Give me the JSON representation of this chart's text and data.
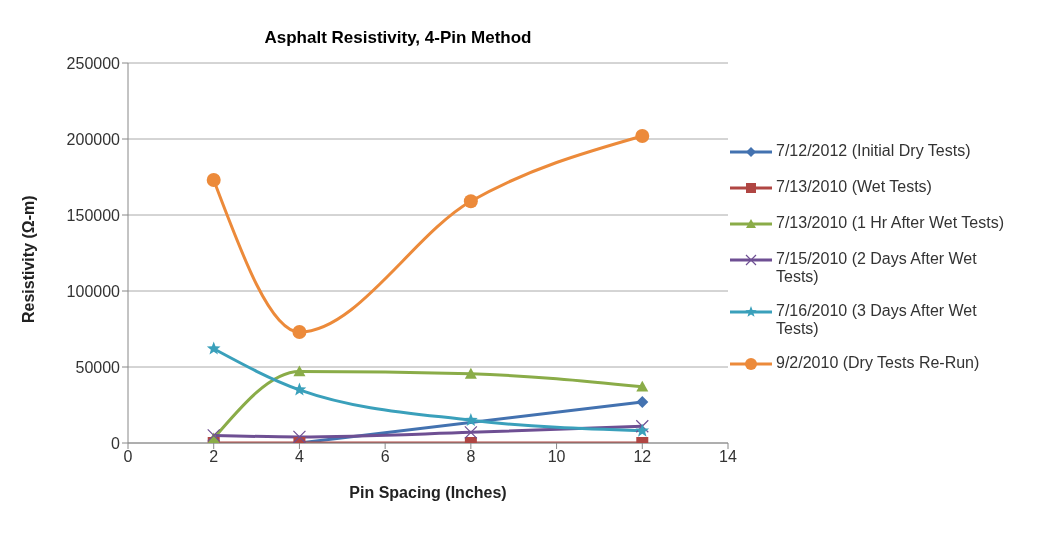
{
  "chart_data": {
    "type": "line",
    "title": "Asphalt Resistivity, 4-Pin Method",
    "xlabel": "Pin Spacing (Inches)",
    "ylabel": "Resistivity (Ω-m)",
    "x": [
      2,
      4,
      8,
      12
    ],
    "xlim": [
      0,
      14
    ],
    "xticks": [
      0,
      2,
      4,
      6,
      8,
      10,
      12,
      14
    ],
    "ylim": [
      0,
      250000
    ],
    "yticks": [
      0,
      50000,
      100000,
      150000,
      200000,
      250000
    ],
    "grid": "y",
    "legend": "right",
    "series": [
      {
        "name": "7/12/2012 (Initial Dry Tests)",
        "color": "#4372b0",
        "marker": "diamond",
        "values": [
          null,
          0,
          null,
          27000
        ]
      },
      {
        "name": "7/13/2010  (Wet Tests)",
        "color": "#b04643",
        "marker": "square",
        "values": [
          0,
          0,
          0,
          0
        ]
      },
      {
        "name": "7/13/2010 (1 Hr After Wet Tests)",
        "color": "#8aac48",
        "marker": "triangle",
        "values": [
          3000,
          47000,
          45500,
          37000
        ]
      },
      {
        "name": "7/15/2010 (2 Days After Wet Tests)",
        "color": "#6e4f93",
        "marker": "cross",
        "values": [
          5000,
          4000,
          7000,
          11000
        ]
      },
      {
        "name": "7/16/2010 (3 Days After Wet Tests)",
        "color": "#3aa0bb",
        "marker": "star",
        "values": [
          62000,
          35000,
          15000,
          8000
        ]
      },
      {
        "name": "9/2/2010 (Dry Tests Re-Run)",
        "color": "#ec8a3a",
        "marker": "circle",
        "values": [
          173000,
          73000,
          159000,
          202000
        ]
      }
    ]
  }
}
